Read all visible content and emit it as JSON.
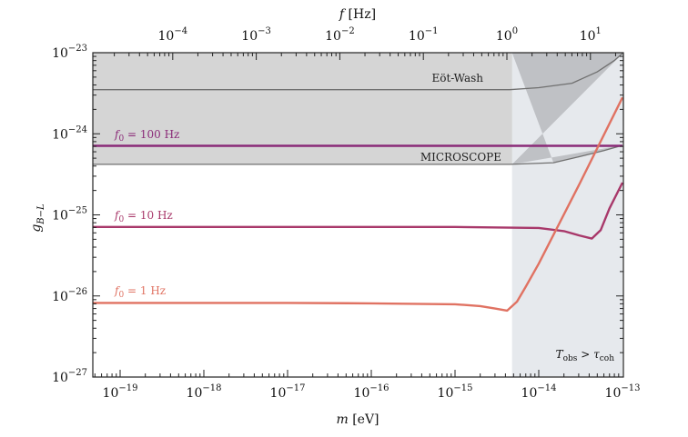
{
  "chart_data": {
    "type": "line",
    "xlabel": {
      "sym": "m",
      "unit": " [eV]"
    },
    "x2label": {
      "sym": "f",
      "unit": " [Hz]"
    },
    "ylabel": {
      "sym": "g",
      "sub": "B−L"
    },
    "xscale": "log",
    "yscale": "log",
    "xlim": [
      4.7e-20,
      1e-13
    ],
    "ylim": [
      1e-27,
      1e-23
    ],
    "x2lim_hz": [
      1.1e-05,
      24
    ],
    "grid": false,
    "xticks": [
      {
        "value": 1e-19,
        "label": "10^−19"
      },
      {
        "value": 1e-18,
        "label": "10^−18"
      },
      {
        "value": 1e-17,
        "label": "10^−17"
      },
      {
        "value": 1e-16,
        "label": "10^−16"
      },
      {
        "value": 1e-15,
        "label": "10^−15"
      },
      {
        "value": 1e-14,
        "label": "10^−14"
      },
      {
        "value": 1e-13,
        "label": "10^−13"
      }
    ],
    "x2ticks": [
      {
        "value": 0.0001,
        "label": "10^−4"
      },
      {
        "value": 0.001,
        "label": "10^−3"
      },
      {
        "value": 0.01,
        "label": "10^−2"
      },
      {
        "value": 0.1,
        "label": "10^−1"
      },
      {
        "value": 1,
        "label": "10^0"
      },
      {
        "value": 10,
        "label": "10^1"
      }
    ],
    "yticks": [
      {
        "value": 1e-23,
        "label": "10^−23"
      },
      {
        "value": 1e-24,
        "label": "10^−24"
      },
      {
        "value": 1e-25,
        "label": "10^−25"
      },
      {
        "value": 1e-26,
        "label": "10^−26"
      },
      {
        "value": 1e-27,
        "label": "10^−27"
      }
    ],
    "regions": [
      {
        "label": "Tobs > τcoh",
        "label_parts": {
          "a": "T",
          "asub": "obs",
          "mid": " > ",
          "b": "τ",
          "bsub": "coh"
        },
        "x_from": 4.8e-15,
        "x_to": 1e-13,
        "color": "#e6e9ed"
      }
    ],
    "constraints": [
      {
        "name": "Eöt-Wash",
        "color": "#707070",
        "x": [
          4.7e-20,
          1e-18,
          1e-16,
          4.5e-15,
          1e-14,
          2.5e-14,
          5e-14,
          8e-14,
          1e-13
        ],
        "y": [
          3.5e-24,
          3.5e-24,
          3.5e-24,
          3.5e-24,
          3.7e-24,
          4.2e-24,
          5.8e-24,
          8e-24,
          9.8e-24
        ]
      },
      {
        "name": "MICROSCOPE",
        "color": "#707070",
        "fill": "#d5d5d5",
        "x": [
          4.7e-20,
          1e-18,
          1e-16,
          4.5e-15,
          1.5e-14,
          3e-14,
          6e-14,
          1e-13
        ],
        "y": [
          4.2e-25,
          4.2e-25,
          4.2e-25,
          4.2e-25,
          4.4e-25,
          5.2e-25,
          6.2e-25,
          7.2e-25
        ]
      }
    ],
    "series": [
      {
        "name": "f0 = 100 Hz",
        "label_parts": {
          "sym": "f",
          "sub": "0",
          "rest": " = 100 Hz"
        },
        "color": "#8a2a78",
        "x": [
          4.7e-20,
          1e-16,
          1e-14,
          1e-13
        ],
        "y": [
          7.1e-25,
          7.1e-25,
          7.1e-25,
          7.1e-25
        ]
      },
      {
        "name": "f0 = 10 Hz",
        "label_parts": {
          "sym": "f",
          "sub": "0",
          "rest": " = 10 Hz"
        },
        "color": "#a8386a",
        "x": [
          4.7e-20,
          1e-16,
          1e-15,
          1e-14,
          2e-14,
          3e-14,
          4.3e-14,
          5.5e-14,
          7e-14,
          1e-13
        ],
        "y": [
          7.1e-26,
          7.1e-26,
          7.1e-26,
          6.9e-26,
          6.3e-26,
          5.6e-26,
          5.1e-26,
          6.5e-26,
          1.2e-25,
          2.5e-25
        ]
      },
      {
        "name": "f0 = 1 Hz",
        "label_parts": {
          "sym": "f",
          "sub": "0",
          "rest": " = 1 Hz"
        },
        "color": "#e07262",
        "x": [
          4.7e-20,
          1e-17,
          1e-16,
          1e-15,
          2e-15,
          3e-15,
          4.2e-15,
          5.5e-15,
          7e-15,
          1e-14,
          3e-14,
          1e-13
        ],
        "y": [
          8.2e-27,
          8.2e-27,
          8.1e-27,
          7.9e-27,
          7.5e-27,
          7e-27,
          6.6e-27,
          8.5e-27,
          1.3e-26,
          2.5e-26,
          2.3e-25,
          2.8e-24
        ]
      }
    ],
    "overlap_color": "#bfc1c5"
  }
}
